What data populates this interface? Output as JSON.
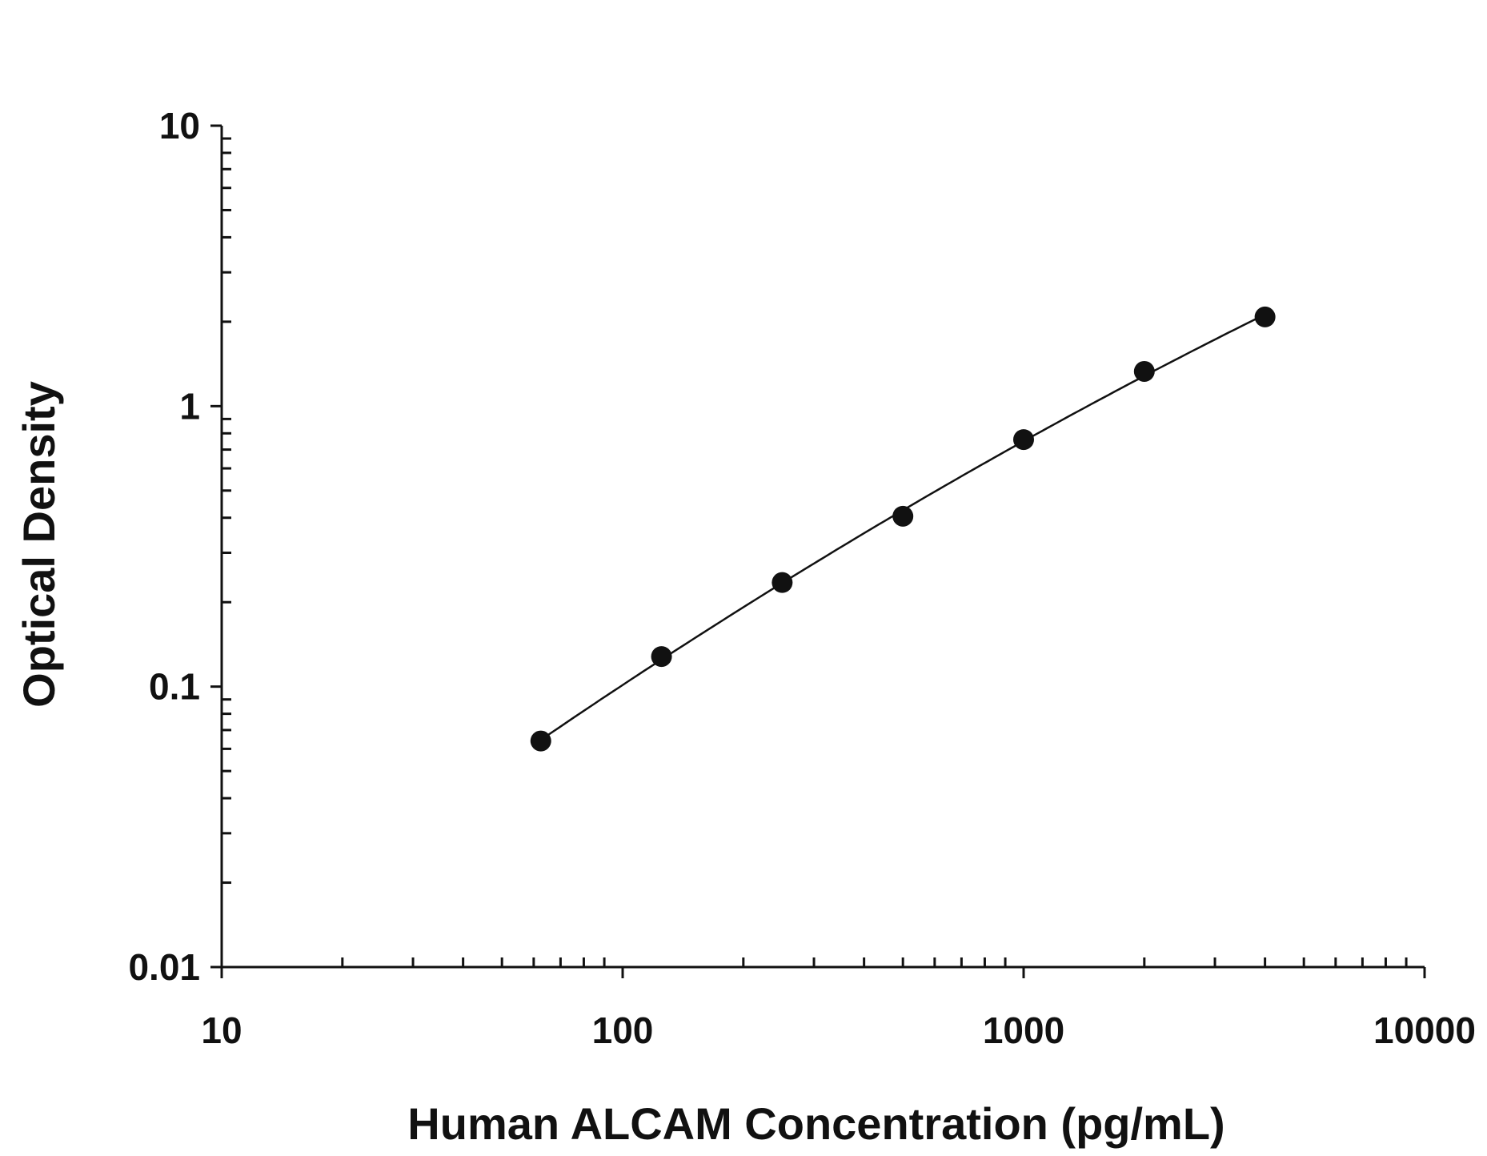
{
  "chart_data": {
    "type": "scatter",
    "title": "",
    "xlabel": "Human ALCAM Concentration (pg/mL)",
    "ylabel": "Optical Density",
    "x_scale": "log",
    "y_scale": "log",
    "xlim": [
      10,
      10000
    ],
    "ylim": [
      0.01,
      10
    ],
    "x_ticks": [
      "10",
      "100",
      "1000",
      "10000"
    ],
    "y_ticks": [
      "0.01",
      "0.1",
      "1",
      "10"
    ],
    "grid": false,
    "legend": "none",
    "series": [
      {
        "name": "",
        "x": [
          62.5,
          125,
          250,
          500,
          1000,
          2000,
          4000
        ],
        "y": [
          0.064,
          0.128,
          0.235,
          0.405,
          0.76,
          1.33,
          2.08
        ],
        "fit_curve": true
      }
    ]
  }
}
